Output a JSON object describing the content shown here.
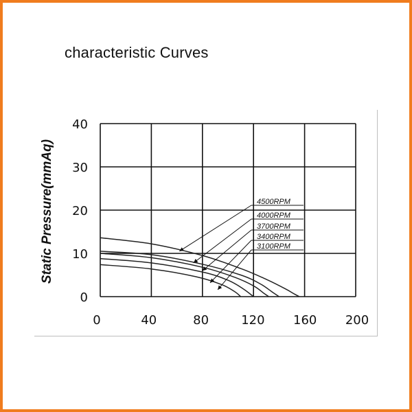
{
  "page": {
    "title": "characteristic Curves",
    "border_color": "#f07c1e"
  },
  "chart_data": {
    "type": "line",
    "title": "characteristic Curves",
    "xlabel": "",
    "ylabel": "Static Pressure(mmAq)",
    "xlim": [
      0,
      200
    ],
    "ylim": [
      0,
      40
    ],
    "x_ticks": [
      "0",
      "40",
      "80",
      "120",
      "160",
      "200"
    ],
    "y_ticks": [
      "0",
      "10",
      "20",
      "30",
      "40"
    ],
    "grid": true,
    "series": [
      {
        "name": "4500RPM",
        "x": [
          0,
          40,
          80,
          110,
          130,
          145,
          152,
          156
        ],
        "y": [
          13.6,
          12.2,
          9.5,
          6.5,
          4.0,
          1.8,
          0.6,
          0
        ]
      },
      {
        "name": "4000RPM",
        "x": [
          0,
          40,
          80,
          110,
          125,
          135,
          140
        ],
        "y": [
          10.5,
          9.7,
          7.5,
          5.0,
          3.0,
          1.0,
          0
        ]
      },
      {
        "name": "3700RPM",
        "x": [
          0,
          40,
          80,
          105,
          120,
          128,
          132
        ],
        "y": [
          10.0,
          9.0,
          6.8,
          4.5,
          2.5,
          0.8,
          0
        ]
      },
      {
        "name": "3400RPM",
        "x": [
          0,
          40,
          80,
          100,
          112,
          120
        ],
        "y": [
          8.8,
          7.8,
          5.7,
          3.8,
          1.8,
          0
        ]
      },
      {
        "name": "3100RPM",
        "x": [
          0,
          40,
          75,
          95,
          105,
          110
        ],
        "y": [
          7.4,
          6.4,
          4.6,
          2.8,
          1.2,
          0
        ]
      }
    ],
    "annotations": [
      {
        "text": "4500RPM",
        "points_to": [
          62,
          10.5
        ]
      },
      {
        "text": "4000RPM",
        "points_to": [
          73,
          7.8
        ]
      },
      {
        "text": "3700RPM",
        "points_to": [
          80,
          6.0
        ]
      },
      {
        "text": "3400RPM",
        "points_to": [
          86,
          3.2
        ]
      },
      {
        "text": "3100RPM",
        "points_to": [
          92,
          1.6
        ]
      }
    ]
  }
}
